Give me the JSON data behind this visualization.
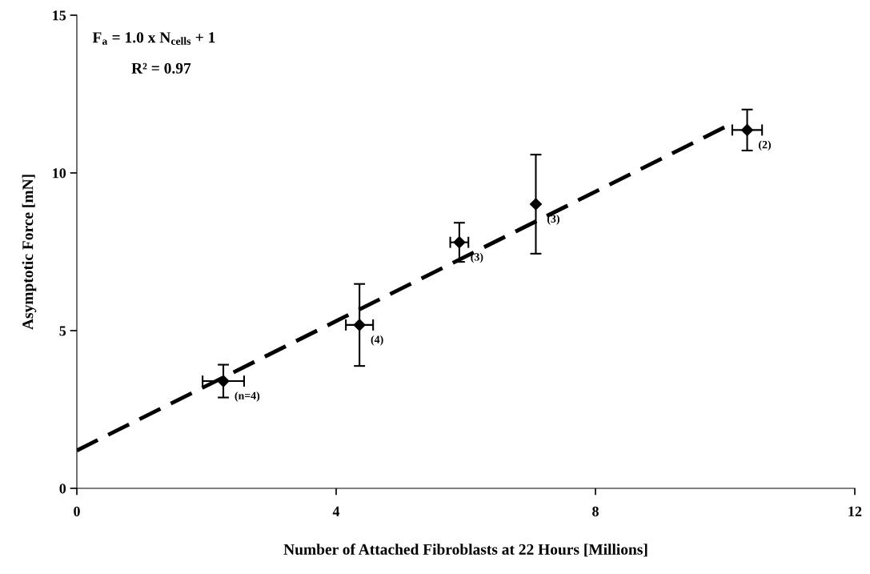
{
  "chart_data": {
    "type": "scatter",
    "xlabel": "Number of Attached Fibroblasts at 22 Hours [Millions]",
    "ylabel": "Asymptotic Force [mN]",
    "xlim": [
      0,
      12
    ],
    "xticks": [
      0,
      4,
      8,
      12
    ],
    "ylim": [
      0,
      15
    ],
    "yticks": [
      0,
      5,
      10,
      15
    ],
    "grid": false,
    "series": [
      {
        "color": "#000000",
        "marker": "diamond",
        "x": [
          2.26,
          4.36,
          5.9,
          7.08,
          10.34
        ],
        "values": [
          3.4,
          5.18,
          7.8,
          9.01,
          11.36
        ],
        "errors": [
          0.52,
          1.3,
          0.62,
          1.57,
          0.65
        ],
        "xerrors": [
          0.32,
          0.21,
          0.14,
          null,
          0.23
        ]
      },
      {
        "type": "line",
        "color": "#000000",
        "line_style": "dashed",
        "marker": "none",
        "x": [
          0,
          10.09
        ],
        "values": [
          1.2,
          11.55
        ]
      }
    ],
    "annotations": [
      "F$_{a}$ = 1.0 x N$_{cells}$ + 1",
      "R² = 0.97",
      {
        "text": "(n=4)",
        "x": 2.26,
        "y": 3.4
      },
      {
        "text": "(4)",
        "x": 4.36,
        "y": 5.18
      },
      {
        "text": "(3)",
        "x": 5.9,
        "y": 7.8
      },
      {
        "text": "(3)",
        "x": 7.08,
        "y": 9.01
      },
      {
        "text": "(2)",
        "x": 10.34,
        "y": 11.36
      }
    ]
  }
}
